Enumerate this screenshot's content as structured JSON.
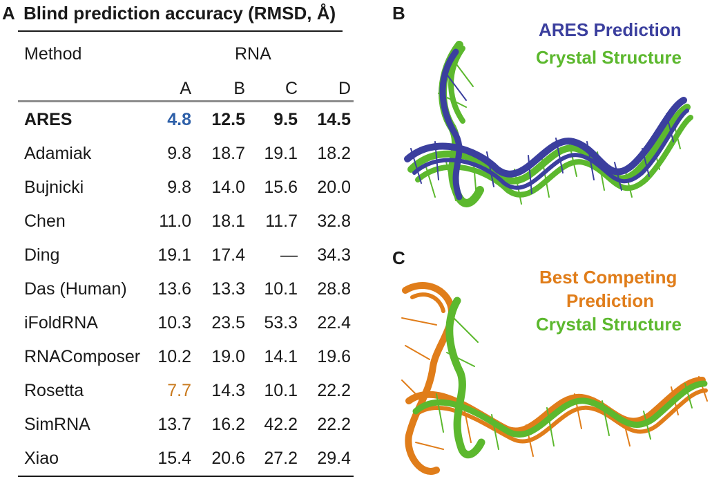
{
  "panel_a": {
    "letter": "A",
    "title": "Blind prediction accuracy (RMSD, Å)",
    "method_header": "Method",
    "rna_header": "RNA",
    "columns": [
      "A",
      "B",
      "C",
      "D"
    ],
    "rows": [
      {
        "method": "ARES",
        "values": [
          "4.8",
          "12.5",
          "9.5",
          "14.5"
        ]
      },
      {
        "method": "Adamiak",
        "values": [
          "9.8",
          "18.7",
          "19.1",
          "18.2"
        ]
      },
      {
        "method": "Bujnicki",
        "values": [
          "9.8",
          "14.0",
          "15.6",
          "20.0"
        ]
      },
      {
        "method": "Chen",
        "values": [
          "11.0",
          "18.1",
          "11.7",
          "32.8"
        ]
      },
      {
        "method": "Ding",
        "values": [
          "19.1",
          "17.4",
          "—",
          "34.3"
        ]
      },
      {
        "method": "Das (Human)",
        "values": [
          "13.6",
          "13.3",
          "10.1",
          "28.8"
        ]
      },
      {
        "method": "iFoldRNA",
        "values": [
          "10.3",
          "23.5",
          "53.3",
          "22.4"
        ]
      },
      {
        "method": "RNAComposer",
        "values": [
          "10.2",
          "19.0",
          "14.1",
          "19.6"
        ]
      },
      {
        "method": "Rosetta",
        "values": [
          "7.7",
          "14.3",
          "10.1",
          "22.2"
        ]
      },
      {
        "method": "SimRNA",
        "values": [
          "13.7",
          "16.2",
          "42.2",
          "22.2"
        ]
      },
      {
        "method": "Xiao",
        "values": [
          "15.4",
          "20.6",
          "27.2",
          "29.4"
        ]
      }
    ]
  },
  "panel_b": {
    "letter": "B",
    "legend_prediction": "ARES Prediction",
    "legend_crystal": "Crystal Structure"
  },
  "panel_c": {
    "letter": "C",
    "legend_prediction_line1": "Best Competing",
    "legend_prediction_line2": "Prediction",
    "legend_crystal": "Crystal Structure"
  },
  "colors": {
    "ares_blue": "#3b3f9e",
    "crystal_green": "#5cb82e",
    "competing_orange": "#e07d1a",
    "highlight_blue": "#2d5fa8",
    "highlight_orange": "#c97a1e"
  }
}
